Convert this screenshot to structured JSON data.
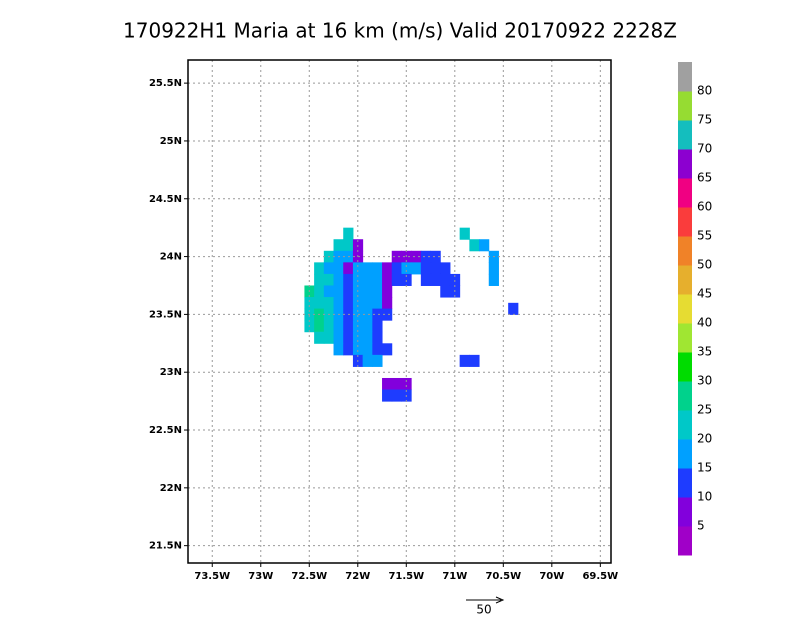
{
  "chart_data": {
    "type": "map",
    "title": "170922H1 Maria at 16 km (m/s) Valid 20170922 2228Z",
    "xlim": [
      -73.75,
      -69.39
    ],
    "ylim": [
      21.35,
      25.7
    ],
    "xticks": [
      {
        "value": -73.5,
        "label": "73.5W"
      },
      {
        "value": -73,
        "label": "73W"
      },
      {
        "value": -72.5,
        "label": "72.5W"
      },
      {
        "value": -72,
        "label": "72W"
      },
      {
        "value": -71.5,
        "label": "71.5W"
      },
      {
        "value": -71,
        "label": "71W"
      },
      {
        "value": -70.5,
        "label": "70.5W"
      },
      {
        "value": -70,
        "label": "70W"
      },
      {
        "value": -69.5,
        "label": "69.5W"
      }
    ],
    "yticks": [
      {
        "value": 21.5,
        "label": "21.5N"
      },
      {
        "value": 22,
        "label": "22N"
      },
      {
        "value": 22.5,
        "label": "22.5N"
      },
      {
        "value": 23,
        "label": "23N"
      },
      {
        "value": 23.5,
        "label": "23.5N"
      },
      {
        "value": 24,
        "label": "24N"
      },
      {
        "value": 24.5,
        "label": "24.5N"
      },
      {
        "value": 25,
        "label": "25N"
      },
      {
        "value": 25.5,
        "label": "25.5N"
      }
    ],
    "grid": true,
    "colorbar": {
      "levels": [
        5,
        10,
        15,
        20,
        25,
        30,
        35,
        40,
        45,
        50,
        55,
        60,
        65,
        70,
        75,
        80
      ],
      "colors": [
        "#a000c8",
        "#8200dc",
        "#1e3cff",
        "#00a0ff",
        "#00c8c8",
        "#00d28c",
        "#00dc00",
        "#a0e632",
        "#e6dc32",
        "#e6af2d",
        "#f08228",
        "#fa3c3c",
        "#f00082",
        "#8c00d0",
        "#14bebe",
        "#96dc32",
        "#a0a0a0"
      ]
    },
    "cell_size": 0.1,
    "cells": [
      {
        "lat": 24.2,
        "lon0": -72.1,
        "values": [
          22
        ]
      },
      {
        "lat": 24.1,
        "lon0": -72.2,
        "values": [
          22,
          22,
          8
        ]
      },
      {
        "lat": 24.0,
        "lon0": -72.3,
        "values": [
          22,
          18,
          18,
          8
        ]
      },
      {
        "lat": 24.0,
        "lon0": -71.6,
        "values": [
          8,
          8,
          8,
          12,
          12
        ]
      },
      {
        "lat": 23.9,
        "lon0": -72.4,
        "values": [
          22,
          18,
          18,
          8,
          18,
          18,
          18,
          8,
          12,
          18,
          18,
          12,
          12,
          12
        ]
      },
      {
        "lat": 23.8,
        "lon0": -72.4,
        "values": [
          22,
          22,
          18,
          12,
          18,
          18,
          18,
          8,
          12,
          12,
          null,
          12,
          12,
          12,
          12
        ]
      },
      {
        "lat": 23.7,
        "lon0": -72.5,
        "values": [
          26,
          22,
          18,
          18,
          12,
          18,
          18,
          18,
          8
        ]
      },
      {
        "lat": 23.7,
        "lon0": -71.1,
        "values": [
          12,
          12
        ]
      },
      {
        "lat": 23.6,
        "lon0": -72.5,
        "values": [
          22,
          22,
          22,
          18,
          12,
          18,
          18,
          18,
          8
        ]
      },
      {
        "lat": 23.5,
        "lon0": -72.5,
        "values": [
          22,
          26,
          22,
          18,
          12,
          18,
          18,
          12,
          12
        ]
      },
      {
        "lat": 23.4,
        "lon0": -72.5,
        "values": [
          22,
          26,
          22,
          18,
          12,
          18,
          18,
          12
        ]
      },
      {
        "lat": 23.3,
        "lon0": -72.4,
        "values": [
          22,
          22,
          18,
          12,
          18,
          18,
          12
        ]
      },
      {
        "lat": 23.2,
        "lon0": -72.2,
        "values": [
          18,
          12,
          18,
          18,
          12,
          12
        ]
      },
      {
        "lat": 23.1,
        "lon0": -72.0,
        "values": [
          12,
          18,
          18
        ]
      },
      {
        "lat": 22.9,
        "lon0": -71.7,
        "values": [
          8,
          8,
          8
        ]
      },
      {
        "lat": 22.8,
        "lon0": -71.7,
        "values": [
          12,
          12,
          12
        ]
      },
      {
        "lat": 24.2,
        "lon0": -70.9,
        "values": [
          22
        ]
      },
      {
        "lat": 24.1,
        "lon0": -70.8,
        "values": [
          22,
          18
        ]
      },
      {
        "lat": 24.0,
        "lon0": -70.6,
        "values": [
          18
        ]
      },
      {
        "lat": 23.9,
        "lon0": -70.6,
        "values": [
          18
        ]
      },
      {
        "lat": 23.8,
        "lon0": -70.6,
        "values": [
          18
        ]
      },
      {
        "lat": 23.55,
        "lon0": -70.4,
        "values": [
          12
        ]
      },
      {
        "lat": 23.1,
        "lon0": -70.9,
        "values": [
          12,
          12
        ]
      }
    ],
    "reference_vector": "50"
  }
}
